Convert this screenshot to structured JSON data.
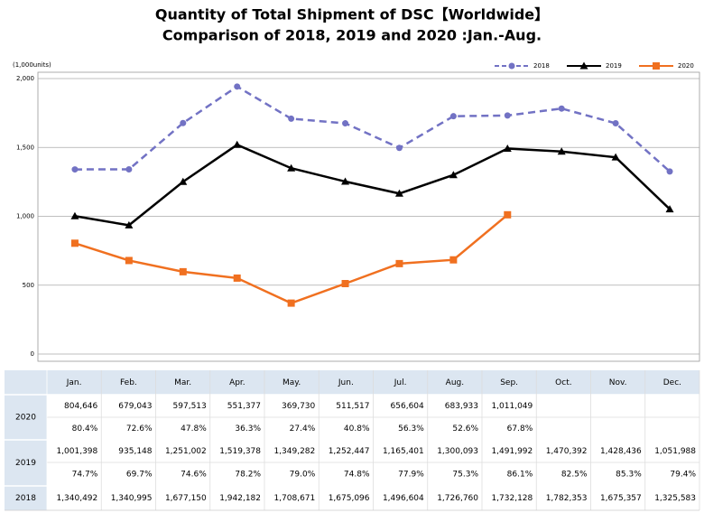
{
  "chart_data": {
    "type": "line",
    "title": "Quantity of Total Shipment of DSC【Worldwide】",
    "subtitle": "Comparison of 2018, 2019 and 2020 :Jan.-Aug.",
    "y_unit_label": "(1,000units)",
    "categories": [
      "Jan.",
      "Feb.",
      "Mar.",
      "Apr.",
      "May.",
      "Jun.",
      "Jul.",
      "Aug.",
      "Sep.",
      "Oct.",
      "Nov.",
      "Dec."
    ],
    "ylim": [
      0,
      2000000
    ],
    "yticks": [
      0,
      {
        "value": 500000,
        "label": "500"
      },
      {
        "value": 1000000,
        "label": "1,000"
      },
      {
        "value": 1500000,
        "label": "1,500"
      },
      {
        "value": 2000000,
        "label": "2,000"
      }
    ],
    "grid": true,
    "legend": "top-right",
    "series": [
      {
        "name": "2018",
        "color": "#7272c4",
        "linestyle": "dashed",
        "marker": "circle",
        "values": [
          1340492,
          1340995,
          1677150,
          1942182,
          1708671,
          1675096,
          1496604,
          1726760,
          1732128,
          1782353,
          1675357,
          1325583
        ],
        "value_labels": [
          "1,340,492",
          "1,340,995",
          "1,677,150",
          "1,942,182",
          "1,708,671",
          "1,675,096",
          "1,496,604",
          "1,726,760",
          "1,732,128",
          "1,782,353",
          "1,675,357",
          "1,325,583"
        ]
      },
      {
        "name": "2019",
        "color": "#000000",
        "linestyle": "solid",
        "marker": "triangle",
        "values": [
          1001398,
          935148,
          1251002,
          1519378,
          1349282,
          1252447,
          1165401,
          1300093,
          1491992,
          1470392,
          1428436,
          1051988
        ],
        "value_labels": [
          "1,001,398",
          "935,148",
          "1,251,002",
          "1,519,378",
          "1,349,282",
          "1,252,447",
          "1,165,401",
          "1,300,093",
          "1,491,992",
          "1,470,392",
          "1,428,436",
          "1,051,988"
        ],
        "yoy_labels": [
          "74.7%",
          "69.7%",
          "74.6%",
          "78.2%",
          "79.0%",
          "74.8%",
          "77.9%",
          "75.3%",
          "86.1%",
          "82.5%",
          "85.3%",
          "79.4%"
        ]
      },
      {
        "name": "2020",
        "color": "#f07020",
        "linestyle": "solid",
        "marker": "square",
        "values": [
          804646,
          679043,
          597513,
          551377,
          369730,
          511517,
          656604,
          683933,
          1011049,
          null,
          null,
          null
        ],
        "value_labels": [
          "804,646",
          "679,043",
          "597,513",
          "551,377",
          "369,730",
          "511,517",
          "656,604",
          "683,933",
          "1,011,049",
          null,
          null,
          null
        ],
        "yoy_labels": [
          "80.4%",
          "72.6%",
          "47.8%",
          "36.3%",
          "27.4%",
          "40.8%",
          "56.3%",
          "52.6%",
          "67.8%",
          null,
          null,
          null
        ]
      }
    ]
  }
}
